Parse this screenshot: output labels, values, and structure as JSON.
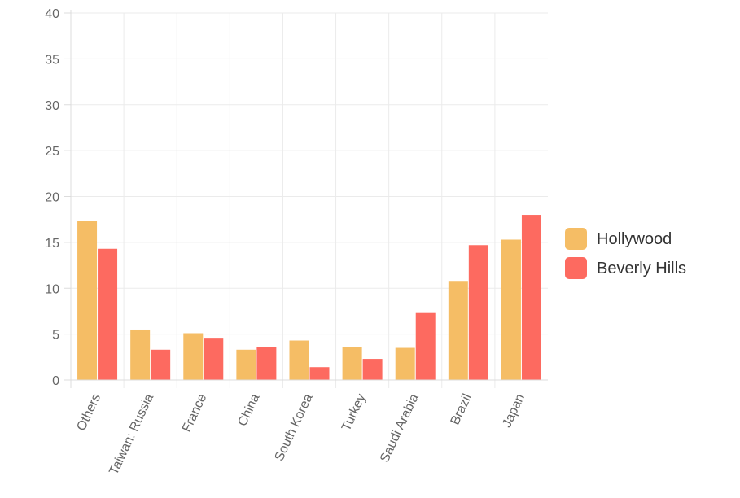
{
  "chart_data": {
    "type": "bar",
    "categories": [
      "Others",
      "Taiwan: Russia",
      "France",
      "China",
      "South Korea",
      "Turkey",
      "Saudi Arabia",
      "Brazil",
      "Japan"
    ],
    "series": [
      {
        "name": "Hollywood",
        "color": "#f5bd65",
        "values": [
          17.3,
          5.5,
          5.1,
          3.3,
          4.3,
          3.6,
          3.5,
          10.8,
          15.3
        ]
      },
      {
        "name": "Beverly Hills",
        "color": "#fd6a60",
        "values": [
          14.3,
          3.3,
          4.6,
          3.6,
          1.4,
          2.3,
          7.3,
          14.7,
          18.0
        ]
      }
    ],
    "ylim": [
      0,
      40
    ],
    "yticks": [
      "0",
      "5",
      "10",
      "15",
      "20",
      "25",
      "30",
      "35",
      "40"
    ],
    "ytick_values": [
      0,
      5,
      10,
      15,
      20,
      25,
      30,
      35,
      40
    ],
    "grid": true,
    "legend_position": "right",
    "xlabel": "",
    "ylabel": "",
    "title": ""
  }
}
